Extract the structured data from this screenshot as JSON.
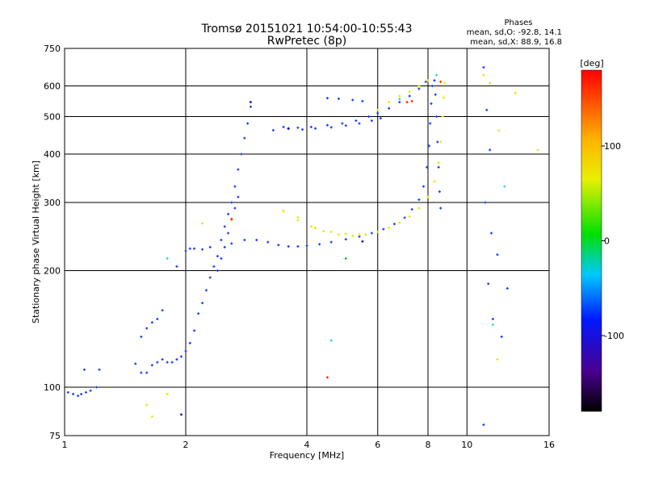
{
  "chart_data": {
    "type": "scatter",
    "title": "Tromsø 20151021 10:54:00-10:55:43",
    "subtitle": "RwPretec (8p)",
    "xlabel": "Frequency [MHz]",
    "ylabel": "Stationary phase Virtual Height [km]",
    "x_scale": "log",
    "y_scale": "log",
    "xlim": [
      1,
      16
    ],
    "ylim": [
      75,
      750
    ],
    "x_ticks": [
      1,
      2,
      4,
      6,
      8,
      10,
      16
    ],
    "x_tick_labels": [
      "1",
      "2",
      "4",
      "6",
      "8",
      "10",
      "16"
    ],
    "y_ticks": [
      75,
      100,
      200,
      300,
      400,
      500,
      600,
      750
    ],
    "y_tick_labels": [
      "75",
      "100",
      "200",
      "300",
      "400",
      "500",
      "600",
      "750"
    ],
    "grid": true,
    "stats": {
      "heading": "Phases",
      "line1": "mean, sd,O: -92.8, 14.1",
      "line2": "mean, sd,X:  88.9, 16.8"
    },
    "colorbar": {
      "label": "[deg]",
      "range": [
        -180,
        180
      ],
      "ticks": [
        100,
        0,
        -100
      ],
      "tick_labels": [
        "100",
        "0",
        "-100"
      ]
    },
    "series": [
      {
        "phase": -100,
        "color": "#1a3cff",
        "points": [
          [
            1.02,
            97
          ],
          [
            1.05,
            96
          ],
          [
            1.08,
            95
          ],
          [
            1.1,
            96
          ],
          [
            1.13,
            97
          ],
          [
            1.16,
            98
          ],
          [
            1.2,
            100
          ],
          [
            1.12,
            111
          ],
          [
            1.22,
            111
          ],
          [
            1.5,
            115
          ],
          [
            1.55,
            109
          ],
          [
            1.6,
            109
          ],
          [
            1.65,
            114
          ],
          [
            1.7,
            116
          ],
          [
            1.75,
            118
          ],
          [
            1.8,
            116
          ],
          [
            1.85,
            116
          ],
          [
            1.9,
            118
          ],
          [
            1.95,
            120
          ],
          [
            2.0,
            124
          ],
          [
            1.55,
            135
          ],
          [
            1.6,
            142
          ],
          [
            1.65,
            147
          ],
          [
            1.7,
            150
          ],
          [
            1.75,
            158
          ],
          [
            1.9,
            205
          ],
          [
            2.0,
            225
          ],
          [
            2.05,
            228
          ],
          [
            2.1,
            228
          ],
          [
            2.2,
            227
          ],
          [
            2.3,
            230
          ],
          [
            2.05,
            130
          ],
          [
            2.1,
            140
          ],
          [
            2.15,
            155
          ],
          [
            2.2,
            165
          ],
          [
            2.25,
            178
          ],
          [
            2.3,
            192
          ],
          [
            2.35,
            205
          ],
          [
            2.4,
            218
          ],
          [
            2.45,
            240
          ],
          [
            2.5,
            260
          ],
          [
            2.55,
            280
          ],
          [
            2.6,
            300
          ],
          [
            2.65,
            330
          ],
          [
            2.7,
            365
          ],
          [
            2.75,
            400
          ],
          [
            2.8,
            440
          ],
          [
            2.85,
            480
          ],
          [
            2.9,
            530
          ],
          [
            2.4,
            200
          ],
          [
            2.45,
            215
          ],
          [
            2.5,
            230
          ],
          [
            2.55,
            250
          ],
          [
            2.6,
            270
          ],
          [
            2.65,
            290
          ],
          [
            2.7,
            310
          ],
          [
            2.6,
            235
          ],
          [
            2.8,
            240
          ],
          [
            3.0,
            240
          ],
          [
            3.2,
            237
          ],
          [
            3.4,
            233
          ],
          [
            3.6,
            231
          ],
          [
            3.8,
            231
          ],
          [
            4.0,
            232
          ],
          [
            4.3,
            234
          ],
          [
            4.6,
            237
          ],
          [
            5.0,
            241
          ],
          [
            5.4,
            245
          ],
          [
            5.8,
            250
          ],
          [
            6.2,
            256
          ],
          [
            6.6,
            264
          ],
          [
            7.0,
            274
          ],
          [
            7.3,
            288
          ],
          [
            7.6,
            305
          ],
          [
            7.8,
            330
          ],
          [
            7.95,
            370
          ],
          [
            8.05,
            420
          ],
          [
            8.1,
            480
          ],
          [
            8.15,
            540
          ],
          [
            8.2,
            600
          ],
          [
            8.3,
            620
          ],
          [
            8.35,
            570
          ],
          [
            8.4,
            500
          ],
          [
            8.45,
            430
          ],
          [
            8.5,
            370
          ],
          [
            8.55,
            320
          ],
          [
            8.6,
            290
          ],
          [
            3.5,
            470
          ],
          [
            3.8,
            468
          ],
          [
            4.1,
            470
          ],
          [
            4.5,
            475
          ],
          [
            4.9,
            480
          ],
          [
            5.3,
            488
          ],
          [
            5.7,
            500
          ],
          [
            6.0,
            510
          ],
          [
            6.4,
            525
          ],
          [
            6.8,
            545
          ],
          [
            7.2,
            565
          ],
          [
            7.6,
            590
          ],
          [
            7.9,
            615
          ],
          [
            3.3,
            461
          ],
          [
            3.6,
            465
          ],
          [
            3.9,
            463
          ],
          [
            4.2,
            466
          ],
          [
            4.6,
            469
          ],
          [
            5.0,
            474
          ],
          [
            5.4,
            480
          ],
          [
            5.8,
            488
          ],
          [
            6.1,
            495
          ],
          [
            4.5,
            558
          ],
          [
            4.8,
            556
          ],
          [
            5.2,
            552
          ],
          [
            5.5,
            548
          ],
          [
            11.0,
            670
          ],
          [
            11.2,
            520
          ],
          [
            11.4,
            410
          ],
          [
            11.1,
            300
          ],
          [
            11.5,
            250
          ],
          [
            11.3,
            185
          ],
          [
            11.6,
            150
          ],
          [
            11.9,
            220
          ],
          [
            12.2,
            135
          ],
          [
            11.0,
            80
          ],
          [
            12.6,
            180
          ]
        ]
      },
      {
        "phase": 100,
        "color": "#e8e800",
        "points": [
          [
            3.5,
            285
          ],
          [
            3.8,
            270
          ],
          [
            4.1,
            260
          ],
          [
            4.4,
            253
          ],
          [
            4.8,
            248
          ],
          [
            5.2,
            246
          ],
          [
            5.6,
            248
          ],
          [
            6.0,
            252
          ],
          [
            6.4,
            258
          ],
          [
            6.8,
            266
          ],
          [
            7.2,
            276
          ],
          [
            7.6,
            290
          ],
          [
            8.0,
            310
          ],
          [
            8.3,
            340
          ],
          [
            8.5,
            380
          ],
          [
            8.6,
            430
          ],
          [
            8.7,
            500
          ],
          [
            8.75,
            560
          ],
          [
            8.8,
            610
          ],
          [
            3.8,
            275
          ],
          [
            4.2,
            258
          ],
          [
            4.6,
            252
          ],
          [
            5.0,
            249
          ],
          [
            5.4,
            248
          ],
          [
            6.0,
            520
          ],
          [
            6.4,
            545
          ],
          [
            6.8,
            565
          ],
          [
            7.2,
            580
          ],
          [
            7.6,
            600
          ],
          [
            8.0,
            620
          ],
          [
            1.6,
            90
          ],
          [
            1.65,
            84
          ],
          [
            1.8,
            96
          ],
          [
            2.6,
            270
          ],
          [
            2.2,
            265
          ],
          [
            11.0,
            640
          ],
          [
            11.4,
            610
          ],
          [
            12.0,
            460
          ],
          [
            13.2,
            575
          ],
          [
            15.0,
            410
          ],
          [
            11.9,
            118
          ]
        ]
      },
      {
        "phase": 30,
        "color": "#22d8ee",
        "points": [
          [
            1.8,
            215
          ],
          [
            4.6,
            132
          ],
          [
            6.8,
            555
          ],
          [
            8.4,
            640
          ],
          [
            12.4,
            330
          ],
          [
            11.6,
            145
          ]
        ]
      },
      {
        "phase": 170,
        "color": "#ff2a00",
        "points": [
          [
            7.1,
            545
          ],
          [
            7.3,
            548
          ],
          [
            8.6,
            615
          ],
          [
            4.5,
            106
          ],
          [
            2.6,
            272
          ]
        ]
      },
      {
        "phase": 40,
        "color": "#00c800",
        "points": [
          [
            5.0,
            215
          ]
        ]
      },
      {
        "phase": -150,
        "color": "#2a0088",
        "points": [
          [
            1.95,
            85
          ],
          [
            2.9,
            545
          ],
          [
            3.6,
            466
          ],
          [
            5.5,
            238
          ]
        ]
      }
    ]
  }
}
